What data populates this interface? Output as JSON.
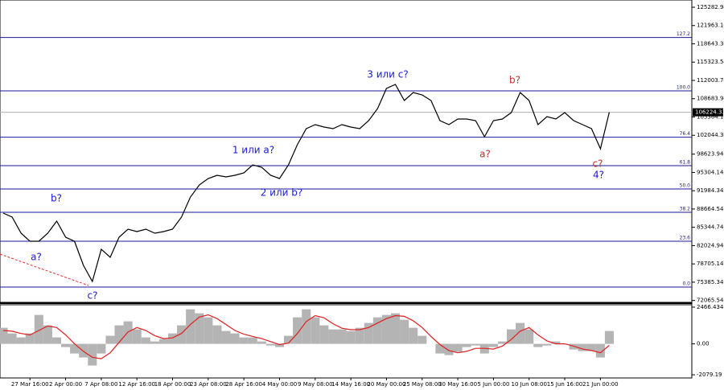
{
  "chart_data": [
    {
      "type": "line",
      "categories": [
        null,
        null,
        null,
        "27 Mar 16:00",
        null,
        null,
        null,
        "2 Apr 00:00",
        null,
        null,
        null,
        "7 Apr 08:00",
        null,
        null,
        null,
        "12 Apr 16:00",
        null,
        null,
        null,
        "18 Apr 00:00",
        null,
        null,
        null,
        "23 Apr 08:00",
        null,
        null,
        null,
        "28 Apr 16:00",
        null,
        null,
        null,
        "4 May 00:00",
        null,
        null,
        null,
        "9 May 08:00",
        null,
        null,
        null,
        "14 May 16:00",
        null,
        null,
        null,
        "20 May 00:00",
        null,
        null,
        null,
        "25 May 08:00",
        null,
        null,
        null,
        "30 May 16:00",
        null,
        null,
        null,
        "5 Jun 00:00",
        null,
        null,
        null,
        "10 Jun 08:00",
        null,
        null,
        null,
        "15 Jun 16:00",
        null,
        null,
        null,
        "21 Jun 00:00",
        null
      ],
      "values": [
        87925,
        87195,
        84276,
        82817,
        82817,
        84276,
        86466,
        83547,
        82817,
        78439,
        75520,
        81358,
        79898,
        83547,
        85006,
        84568,
        85006,
        84276,
        84568,
        85006,
        87195,
        90843,
        93032,
        94200,
        94783,
        94491,
        94783,
        95221,
        96680,
        96243,
        94783,
        94200,
        96680,
        100329,
        103247,
        103977,
        103539,
        103247,
        103977,
        103539,
        103247,
        104707,
        106896,
        110544,
        111274,
        108355,
        109815,
        109377,
        108355,
        104707,
        103977,
        104999,
        104999,
        104707,
        101788,
        104707,
        104999,
        106166,
        109815,
        108355,
        103977,
        105437,
        104999,
        106166,
        104707,
        103977,
        103247,
        99599,
        106224.31
      ],
      "color": "#000000",
      "ylim": [
        71726,
        126596
      ],
      "yticks": [
        125282.94,
        121963.14,
        118643.34,
        115323.54,
        112003.74,
        108683.94,
        105364.14,
        102044.34,
        98623.94,
        95304.14,
        91984.34,
        88664.54,
        85344.74,
        82024.94,
        78705.14,
        75385.34,
        72065.54
      ],
      "last_price": 106224.31,
      "levels": [
        {
          "value": 119791,
          "label": "127.2"
        },
        {
          "value": 110106,
          "label": "100.0"
        },
        {
          "value": 101703,
          "label": "76.4"
        },
        {
          "value": 96535,
          "label": "61.8"
        },
        {
          "value": 92302,
          "label": "50.0"
        },
        {
          "value": 88071,
          "label": "38.2"
        },
        {
          "value": 82817,
          "label": "23.6"
        },
        {
          "value": 74499,
          "label": "0.0"
        }
      ],
      "level_color": "#1a1a9a",
      "annotations": [
        {
          "text": "b?",
          "color": "#1a1ad6"
        },
        {
          "text": "a?",
          "color": "#1a1ad6"
        },
        {
          "text": "c?",
          "color": "#1a1ad6"
        },
        {
          "text": "1 или a?",
          "color": "#1a1ad6"
        },
        {
          "text": "2 или b?",
          "color": "#1a1ad6"
        },
        {
          "text": "3 или c?",
          "color": "#1a1ad6"
        },
        {
          "text": "b?",
          "color": "#c0302a"
        },
        {
          "text": "a?",
          "color": "#c0302a"
        },
        {
          "text": "c?",
          "color": "#c0302a"
        },
        {
          "text": "4?",
          "color": "#1a1ad6"
        }
      ]
    },
    {
      "type": "bar",
      "values": [
        1080,
        702,
        432,
        702,
        1944,
        1242,
        432,
        -216,
        -648,
        -918,
        -1458,
        -648,
        540,
        1242,
        1512,
        972,
        432,
        162,
        324,
        702,
        1242,
        2322,
        2052,
        1782,
        1242,
        864,
        702,
        432,
        432,
        162,
        -108,
        -216,
        540,
        1782,
        2322,
        1782,
        1242,
        972,
        972,
        864,
        1080,
        1404,
        1782,
        1944,
        2052,
        1620,
        1080,
        540,
        0,
        -648,
        -756,
        -540,
        -216,
        -108,
        -648,
        -216,
        162,
        972,
        1404,
        972,
        -216,
        -108,
        162,
        0,
        -378,
        -486,
        -486,
        -918,
        864
      ],
      "color": "#b4b4b4",
      "signal": [
        900,
        850,
        700,
        600,
        900,
        1200,
        1100,
        600,
        0,
        -500,
        -900,
        -1000,
        -600,
        100,
        800,
        1100,
        900,
        550,
        350,
        400,
        700,
        1300,
        1800,
        1950,
        1700,
        1300,
        900,
        650,
        500,
        350,
        150,
        -50,
        50,
        700,
        1500,
        1900,
        1750,
        1350,
        1050,
        950,
        950,
        1100,
        1400,
        1700,
        1900,
        1850,
        1550,
        1100,
        500,
        -50,
        -450,
        -600,
        -500,
        -300,
        -300,
        -350,
        -150,
        300,
        850,
        1100,
        600,
        200,
        0,
        0,
        -150,
        -350,
        -450,
        -600,
        -100
      ],
      "signal_color": "#e02020",
      "ylim": [
        -2290,
        2627
      ],
      "yticks": [
        2466.434,
        {
          "value": 0,
          "label": "0.00"
        },
        -2079.19
      ]
    }
  ]
}
